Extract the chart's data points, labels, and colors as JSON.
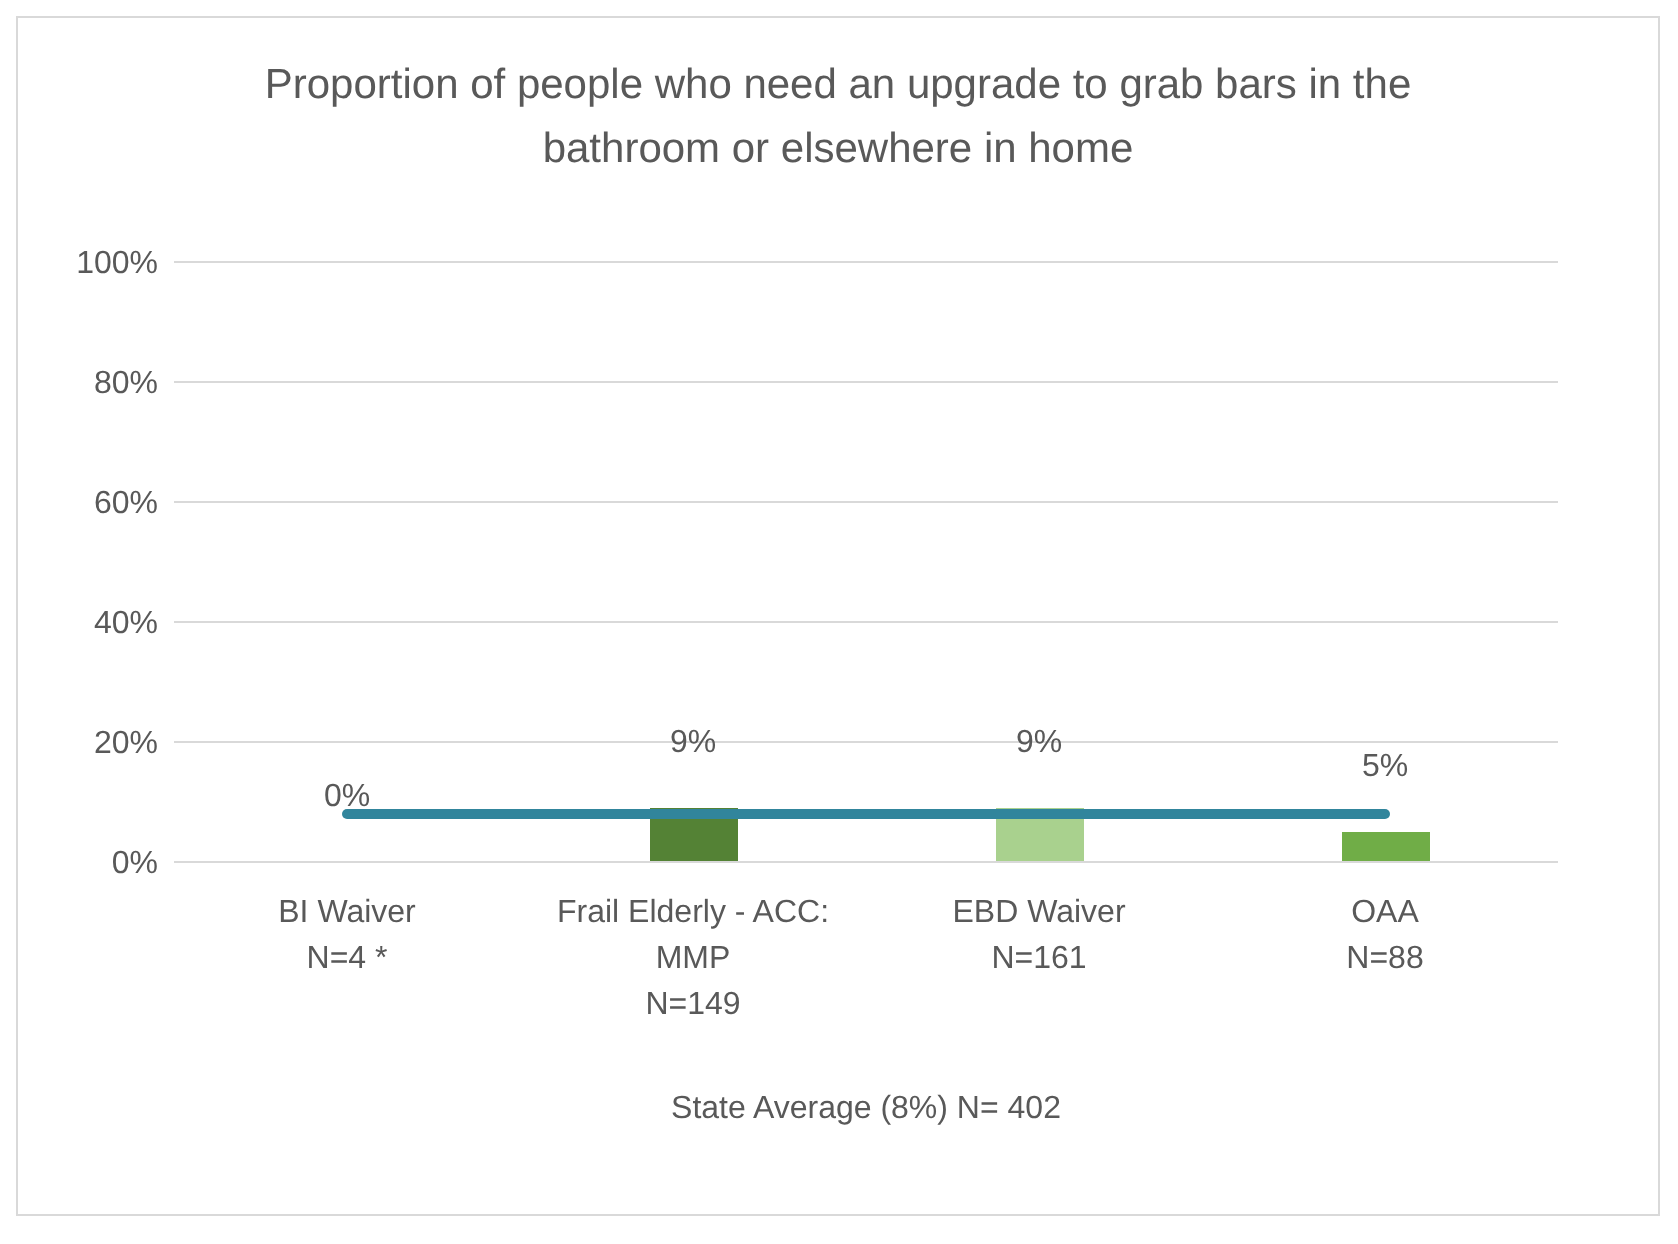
{
  "chart_data": {
    "type": "bar",
    "title": "Proportion of people who need an upgrade to grab bars in the bathroom or elsewhere in home",
    "xlabel": "State Average (8%) N= 402",
    "categories": [
      "BI Waiver\nN=4 *",
      "Frail Elderly - ACC:\nMMP\nN=149",
      "EBD Waiver\nN=161",
      "OAA\nN=88"
    ],
    "series": [
      {
        "type": "bar",
        "color": "#70ad47",
        "colors": [
          "#70ad47",
          "#548235",
          "#a9d18e",
          "#70ad47"
        ],
        "values": [
          0,
          9,
          9,
          5
        ],
        "value_labels": [
          "0%",
          "9%",
          "9%",
          "5%"
        ]
      },
      {
        "type": "line",
        "color": "#31859c",
        "values": [
          8,
          8,
          8,
          8
        ]
      }
    ],
    "ylim": [
      0,
      100
    ],
    "yticks": [
      {
        "value": 0,
        "label": "0%"
      },
      {
        "value": 20,
        "label": "20%"
      },
      {
        "value": 40,
        "label": "40%"
      },
      {
        "value": 60,
        "label": "60%"
      },
      {
        "value": 80,
        "label": "80%"
      },
      {
        "value": 100,
        "label": "100%"
      }
    ],
    "grid": "y",
    "legend": false
  }
}
